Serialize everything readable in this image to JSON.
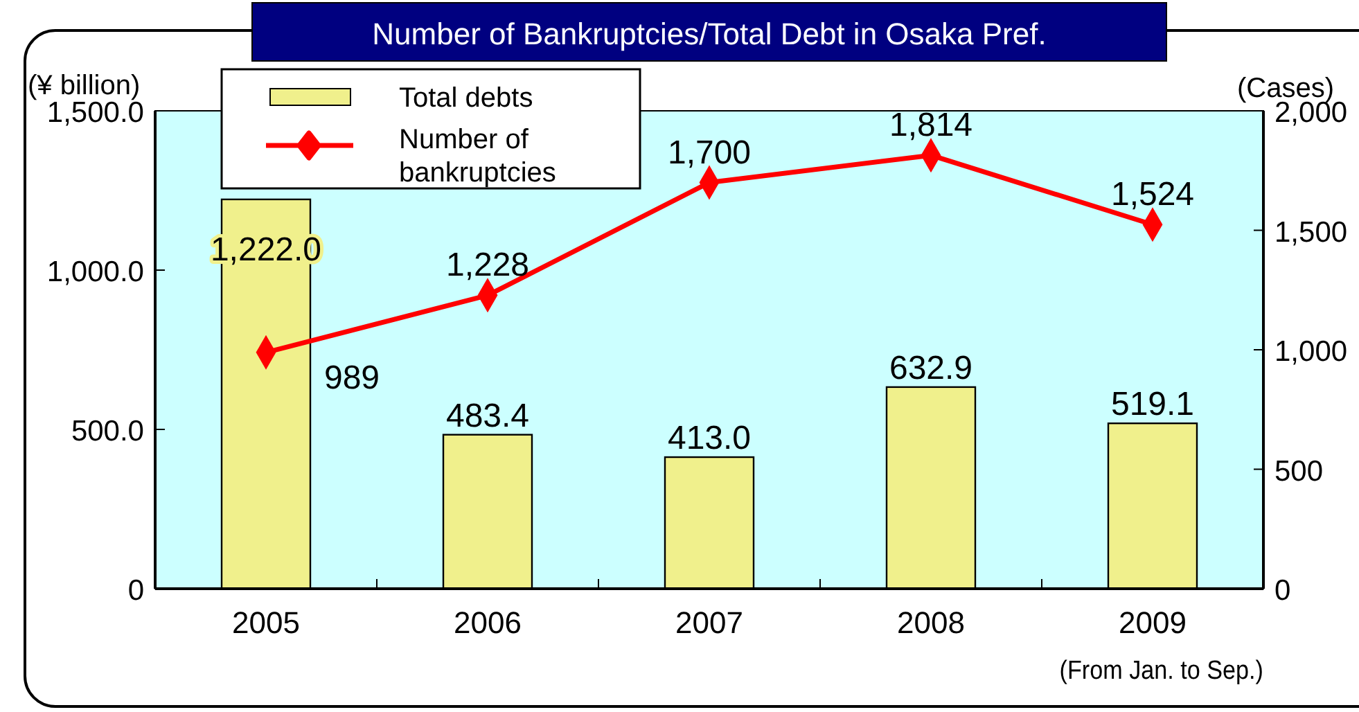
{
  "chart_data": {
    "type": "bar",
    "title": "Number of Bankruptcies/Total Debt in Osaka Pref.",
    "ylabel": "(¥ billion)",
    "y2label": "(Cases)",
    "annotations": [
      "(From Jan. to Sep.)"
    ],
    "categories": [
      "2005",
      "2006",
      "2007",
      "2008",
      "2009"
    ],
    "series": [
      {
        "name": "Total debts",
        "color": "#f0f08c",
        "values": [
          1222.0,
          483.4,
          413.0,
          632.9,
          519.1
        ],
        "value_labels": [
          "1,222.0",
          "483.4",
          "413.0",
          "632.9",
          "519.1"
        ]
      },
      {
        "name": "Number of bankruptcies",
        "type": "line",
        "axis": "y2",
        "color": "#ff0000",
        "marker": "diamond",
        "values": [
          989,
          1228,
          1700,
          1814,
          1524
        ],
        "value_labels": [
          "989",
          "1,228",
          "1,700",
          "1,814",
          "1,524"
        ]
      }
    ],
    "ylim": [
      0,
      1500
    ],
    "yticks": [
      {
        "value": 0,
        "label": "0"
      },
      {
        "value": 500,
        "label": "500.0"
      },
      {
        "value": 1000,
        "label": "1,000.0"
      },
      {
        "value": 1500,
        "label": "1,500.0"
      }
    ],
    "y2lim": [
      0,
      2000
    ],
    "y2ticks": [
      {
        "value": 0,
        "label": "0"
      },
      {
        "value": 500,
        "label": "500"
      },
      {
        "value": 1000,
        "label": "1,000"
      },
      {
        "value": 1500,
        "label": "1,500"
      },
      {
        "value": 2000,
        "label": "2,000"
      }
    ],
    "grid": false,
    "legend": "top left"
  }
}
